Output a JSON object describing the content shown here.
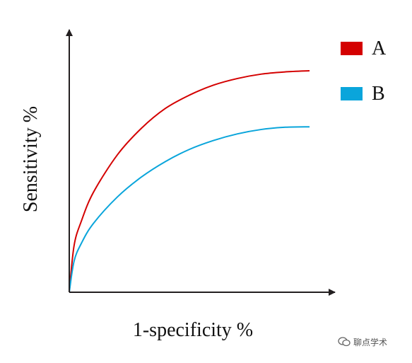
{
  "chart_data": {
    "type": "line",
    "title": "",
    "xlabel": "1-specificity %",
    "ylabel": "Sensitivity %",
    "xlim": [
      0,
      100
    ],
    "ylim": [
      0,
      100
    ],
    "grid": false,
    "legend_position": "top-right",
    "series": [
      {
        "name": "A",
        "color": "#d40000",
        "x": [
          0,
          2,
          5,
          10,
          20,
          30,
          40,
          50,
          60,
          70,
          80,
          90,
          100
        ],
        "y": [
          0,
          21,
          32,
          45,
          62,
          74,
          83,
          89,
          93.5,
          96.5,
          98.5,
          99.5,
          100
        ]
      },
      {
        "name": "B",
        "color": "#0aa5db",
        "x": [
          0,
          2,
          5,
          10,
          20,
          30,
          40,
          50,
          60,
          70,
          80,
          90,
          100
        ],
        "y": [
          0,
          14,
          22,
          31,
          43,
          52,
          59,
          64.5,
          68.5,
          71.5,
          73.5,
          74.5,
          74.7
        ]
      }
    ]
  },
  "watermark": {
    "text": "聊点学术",
    "icon": "chat-bubbles-icon"
  }
}
